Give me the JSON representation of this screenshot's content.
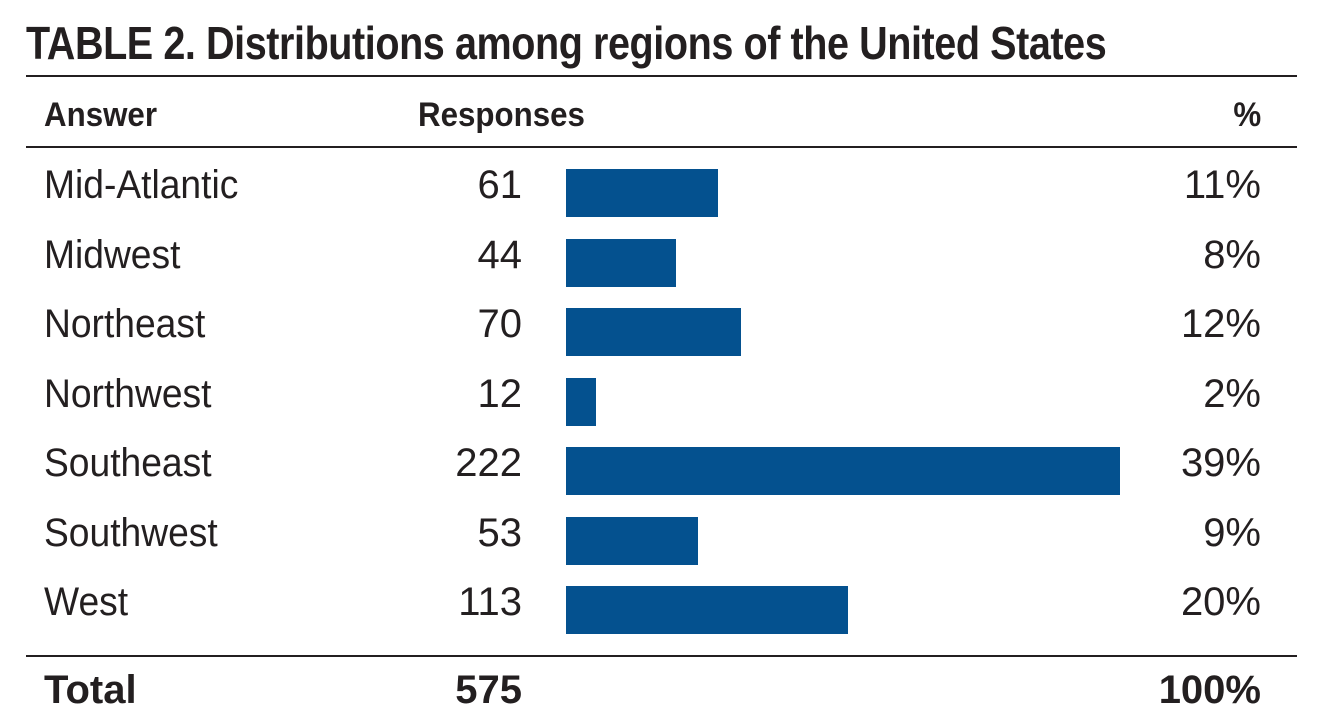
{
  "title": "TABLE 2. Distributions among regions of the United States",
  "headers": {
    "answer": "Answer",
    "responses": "Responses",
    "percent": "%"
  },
  "chart_data": {
    "type": "bar",
    "orientation": "horizontal",
    "title": "TABLE 2. Distributions among regions of the United States",
    "categories": [
      "Mid-Atlantic",
      "Midwest",
      "Northeast",
      "Northwest",
      "Southeast",
      "Southwest",
      "West"
    ],
    "values": [
      61,
      44,
      70,
      12,
      222,
      53,
      113
    ],
    "percent_labels": [
      "11%",
      "8%",
      "12%",
      "2%",
      "39%",
      "9%",
      "20%"
    ],
    "bar_color": "#04518f",
    "grid": false,
    "legend": "none"
  },
  "total": {
    "label": "Total",
    "count": "575",
    "percent": "100%"
  }
}
